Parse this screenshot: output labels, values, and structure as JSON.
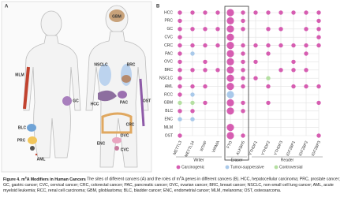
{
  "panel_a": {
    "label": "A",
    "sites": [
      "GBM",
      "NSCLC",
      "BRC",
      "MLM",
      "GC",
      "HCC",
      "PAC",
      "OST",
      "CRC",
      "BLC",
      "OVC",
      "PRC",
      "ENC",
      "CVC",
      "AML"
    ]
  },
  "panel_b": {
    "label": "B",
    "rows": [
      "HCC",
      "PRC",
      "GC",
      "CVC",
      "CRC",
      "PAC",
      "OVC",
      "BRC",
      "NSCLC",
      "AML",
      "RCC",
      "GBM",
      "BLC",
      "ENC",
      "MLM",
      "OST"
    ],
    "groups": [
      {
        "name": "Writer",
        "genes": [
          "METTL3",
          "METTL14",
          "WTAP",
          "VIRMA"
        ]
      },
      {
        "name": "Eraser",
        "genes": [
          "FTO",
          "ALKBH5"
        ]
      },
      {
        "name": "Reader",
        "genes": [
          "YTHDF1",
          "YTHDF2",
          "YTHDF3",
          "IGF2BP1",
          "IGF2BP2",
          "IGF2BP3"
        ]
      }
    ],
    "legend": [
      {
        "name": "Carcinogenic",
        "color": "#d65db1"
      },
      {
        "name": "Tumor-suppressive",
        "color": "#a9c9ea"
      },
      {
        "name": "Controversial",
        "color": "#b5dfa2"
      }
    ],
    "cells": [
      [
        0,
        0,
        0,
        0,
        0,
        0,
        0,
        0,
        0,
        0,
        0,
        0
      ],
      [
        0,
        null,
        null,
        null,
        0,
        0,
        null,
        null,
        null,
        null,
        null,
        0
      ],
      [
        0,
        0,
        0,
        0,
        0,
        0,
        null,
        0,
        0,
        null,
        0,
        0
      ],
      [
        0,
        null,
        null,
        null,
        0,
        null,
        null,
        null,
        null,
        null,
        null,
        0
      ],
      [
        0,
        0,
        0,
        0,
        0,
        0,
        0,
        0,
        0,
        0,
        0,
        0
      ],
      [
        0,
        1,
        null,
        null,
        0,
        0,
        null,
        0,
        null,
        null,
        0,
        null
      ],
      [
        0,
        null,
        0,
        null,
        0,
        0,
        0,
        null,
        null,
        0,
        null,
        null
      ],
      [
        0,
        0,
        0,
        0,
        0,
        0,
        null,
        null,
        0,
        0,
        0,
        null
      ],
      [
        0,
        null,
        null,
        null,
        0,
        0,
        0,
        2,
        null,
        null,
        null,
        null
      ],
      [
        0,
        0,
        0,
        null,
        0,
        0,
        null,
        0,
        null,
        0,
        0,
        0
      ],
      [
        0,
        1,
        null,
        null,
        1,
        null,
        null,
        null,
        null,
        null,
        null,
        null
      ],
      [
        2,
        2,
        0,
        null,
        0,
        0,
        null,
        0,
        null,
        null,
        null,
        0
      ],
      [
        0,
        0,
        null,
        null,
        0,
        0,
        null,
        null,
        null,
        null,
        null,
        null
      ],
      [
        1,
        1,
        null,
        null,
        null,
        null,
        null,
        null,
        null,
        null,
        null,
        null
      ],
      [
        null,
        null,
        null,
        null,
        0,
        null,
        null,
        null,
        null,
        null,
        null,
        null
      ],
      [
        0,
        null,
        null,
        null,
        0,
        0,
        null,
        null,
        null,
        null,
        null,
        0
      ]
    ]
  },
  "caption": {
    "label": "Figure 4.",
    "title": [
      "m",
      "6",
      "A Modifiers in Human Cancers"
    ],
    "text": [
      "The sites of different cancers (A) and the roles of m",
      "6",
      "A genes in different cancers (B). HCC, hepatocellular carcinoma; PRC, prostate cancer; GC, gastric cancer; CVC, cervical cancer; CRC, colorectal cancer; PAC, pancreatic cancer; OVC, ovarian cancer; BRC, breast cancer; NSCLC, non-small cell lung cancer; AML, acute myeloid leukemia; RCC, renal cell carcinoma; GBM, glioblastoma; BLC, bladder cancer; ENC, endometrial cancer; MLM, melanoma; OST, osteosarcoma."
    ]
  }
}
